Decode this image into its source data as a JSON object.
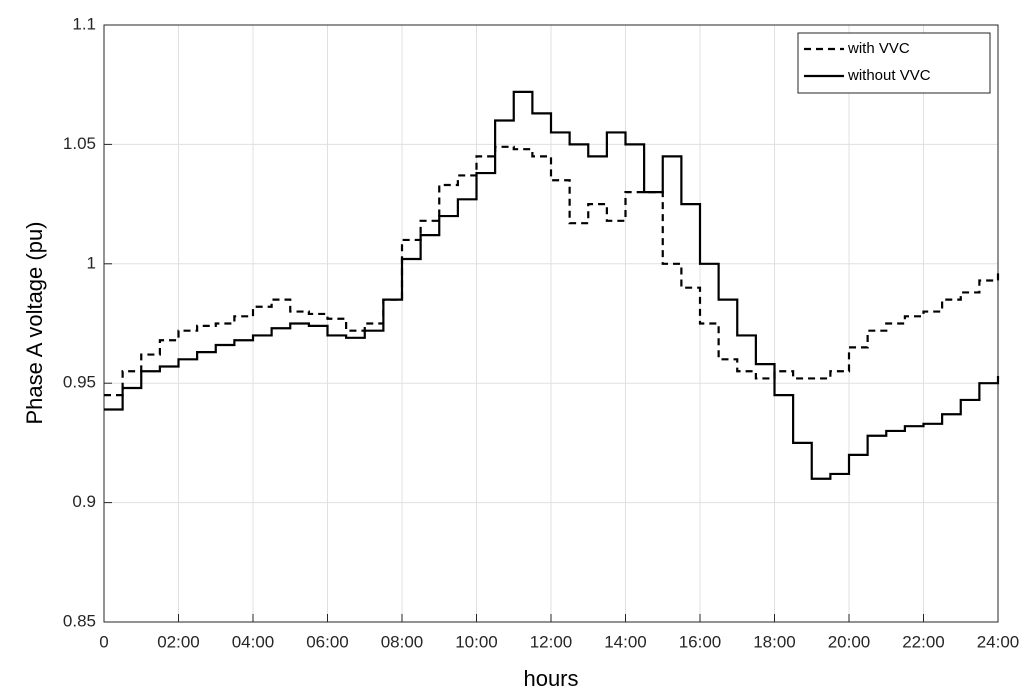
{
  "chart_data": {
    "type": "line",
    "step": true,
    "grid": true,
    "legend": "top-right",
    "xlabel": "hours",
    "ylabel": "Phase A voltage (pu)",
    "x": [
      0,
      0.5,
      1,
      1.5,
      2,
      2.5,
      3,
      3.5,
      4,
      4.5,
      5,
      5.5,
      6,
      6.5,
      7,
      7.5,
      8,
      8.5,
      9,
      9.5,
      10,
      10.5,
      11,
      11.5,
      12,
      12.5,
      13,
      13.5,
      14,
      14.5,
      15,
      15.5,
      16,
      16.5,
      17,
      17.5,
      18,
      18.5,
      19,
      19.5,
      20,
      20.5,
      21,
      21.5,
      22,
      22.5,
      23,
      23.5,
      24
    ],
    "xlim": [
      0,
      24
    ],
    "xticks": [
      0,
      {
        "value": 2,
        "label": "02:00"
      },
      {
        "value": 4,
        "label": "04:00"
      },
      {
        "value": 6,
        "label": "06:00"
      },
      {
        "value": 8,
        "label": "08:00"
      },
      {
        "value": 10,
        "label": "10:00"
      },
      {
        "value": 12,
        "label": "12:00"
      },
      {
        "value": 14,
        "label": "14:00"
      },
      {
        "value": 16,
        "label": "16:00"
      },
      {
        "value": 18,
        "label": "18:00"
      },
      {
        "value": 20,
        "label": "20:00"
      },
      {
        "value": 22,
        "label": "22:00"
      },
      {
        "value": 24,
        "label": "24:00"
      }
    ],
    "ylim": [
      0.85,
      1.1
    ],
    "yticks": [
      0.85,
      0.9,
      0.95,
      1,
      1.05,
      1.1
    ],
    "series": [
      {
        "name": "with VVC",
        "color": "#000000",
        "linestyle": "dashed",
        "values": [
          0.945,
          0.955,
          0.962,
          0.968,
          0.972,
          0.974,
          0.975,
          0.978,
          0.982,
          0.985,
          0.98,
          0.979,
          0.977,
          0.972,
          0.975,
          0.985,
          1.01,
          1.018,
          1.033,
          1.037,
          1.045,
          1.049,
          1.048,
          1.045,
          1.035,
          1.017,
          1.025,
          1.018,
          1.03,
          1.03,
          1.0,
          0.99,
          0.975,
          0.96,
          0.955,
          0.952,
          0.955,
          0.952,
          0.952,
          0.955,
          0.965,
          0.972,
          0.975,
          0.978,
          0.98,
          0.985,
          0.988,
          0.993,
          0.997
        ]
      },
      {
        "name": "without VVC",
        "color": "#000000",
        "linestyle": "solid",
        "values": [
          0.939,
          0.948,
          0.955,
          0.957,
          0.96,
          0.963,
          0.966,
          0.968,
          0.97,
          0.973,
          0.975,
          0.974,
          0.97,
          0.969,
          0.972,
          0.985,
          1.002,
          1.012,
          1.02,
          1.027,
          1.038,
          1.06,
          1.072,
          1.063,
          1.055,
          1.05,
          1.045,
          1.055,
          1.05,
          1.03,
          1.045,
          1.025,
          1.0,
          0.985,
          0.97,
          0.958,
          0.945,
          0.925,
          0.91,
          0.912,
          0.92,
          0.928,
          0.93,
          0.932,
          0.933,
          0.937,
          0.943,
          0.95,
          0.953
        ]
      }
    ]
  }
}
